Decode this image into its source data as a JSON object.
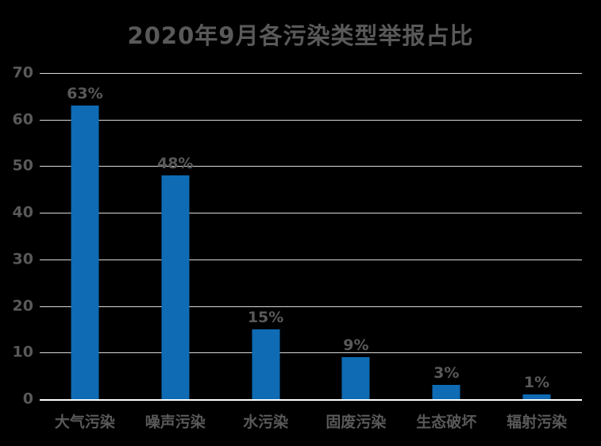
{
  "chart_data": {
    "type": "bar",
    "title": "2020年9月各污染类型举报占比",
    "categories": [
      "大气污染",
      "噪声污染",
      "水污染",
      "固废污染",
      "生态破坏",
      "辐射污染"
    ],
    "values": [
      63,
      48,
      15,
      9,
      3,
      1
    ],
    "data_labels": [
      "63%",
      "48%",
      "15%",
      "9%",
      "3%",
      "1%"
    ],
    "xlabel": "",
    "ylabel": "",
    "ylim": [
      0,
      70
    ],
    "yticks": [
      0,
      10,
      20,
      30,
      40,
      50,
      60,
      70
    ],
    "grid": true,
    "legend_position": "none",
    "colors": {
      "background": "#000000",
      "bar": "#0E6BB4",
      "text": "#595959",
      "gridline": "#D9D9D9",
      "axis_line": "#FFFFFF"
    }
  }
}
